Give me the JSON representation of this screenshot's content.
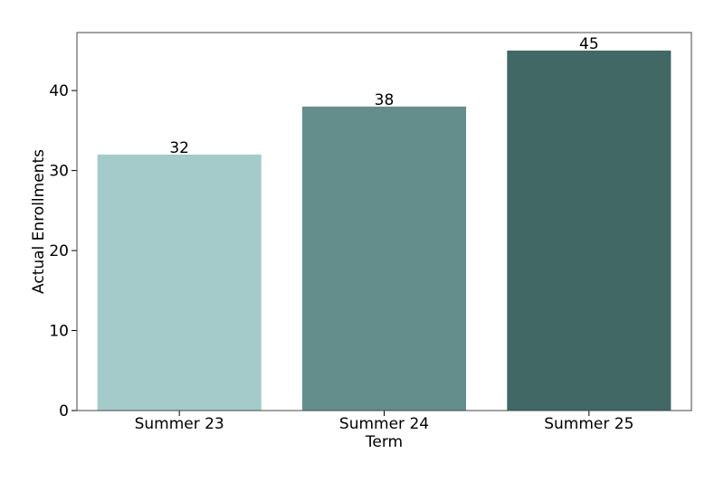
{
  "chart_data": {
    "type": "bar",
    "title": "",
    "xlabel": "Term",
    "ylabel": "Actual Enrollments",
    "categories": [
      "Summer 23",
      "Summer 24",
      "Summer 25"
    ],
    "values": [
      32,
      38,
      45
    ],
    "data_labels": [
      "32",
      "38",
      "45"
    ],
    "colors": [
      "#a4cbc9",
      "#648e8b",
      "#416864"
    ],
    "ylim": [
      0,
      47.25
    ],
    "yticks": [
      0,
      10,
      20,
      30,
      40
    ],
    "ytick_labels": [
      "0",
      "10",
      "20",
      "30",
      "40"
    ],
    "grid": false,
    "legend": "none"
  }
}
